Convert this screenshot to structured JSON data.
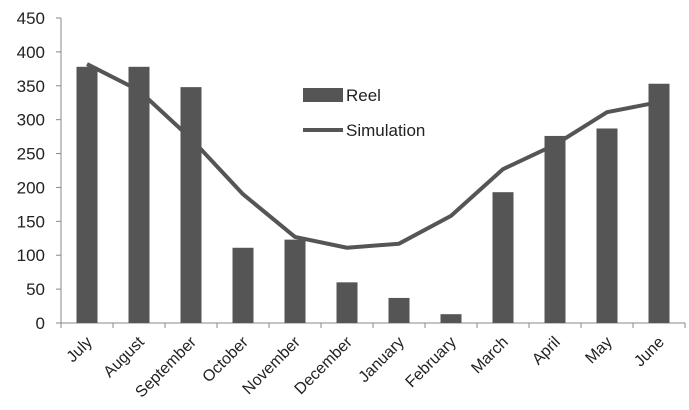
{
  "chart_data": {
    "type": "bar",
    "categories": [
      "July",
      "August",
      "September",
      "October",
      "November",
      "December",
      "January",
      "February",
      "March",
      "April",
      "May",
      "June"
    ],
    "series": [
      {
        "name": "Reel",
        "type": "bar",
        "color": "#555555",
        "values": [
          378,
          378,
          348,
          111,
          123,
          60,
          37,
          13,
          193,
          276,
          287,
          353
        ]
      },
      {
        "name": "Simulation",
        "type": "line",
        "color": "#555555",
        "values": [
          382,
          343,
          272,
          190,
          127,
          111,
          117,
          158,
          227,
          263,
          311,
          326
        ]
      }
    ],
    "yticks": [
      "0",
      "50",
      "100",
      "150",
      "200",
      "250",
      "300",
      "350",
      "400",
      "450"
    ],
    "ylim": [
      0,
      450
    ],
    "grid": false,
    "legend_position": "top-center"
  }
}
